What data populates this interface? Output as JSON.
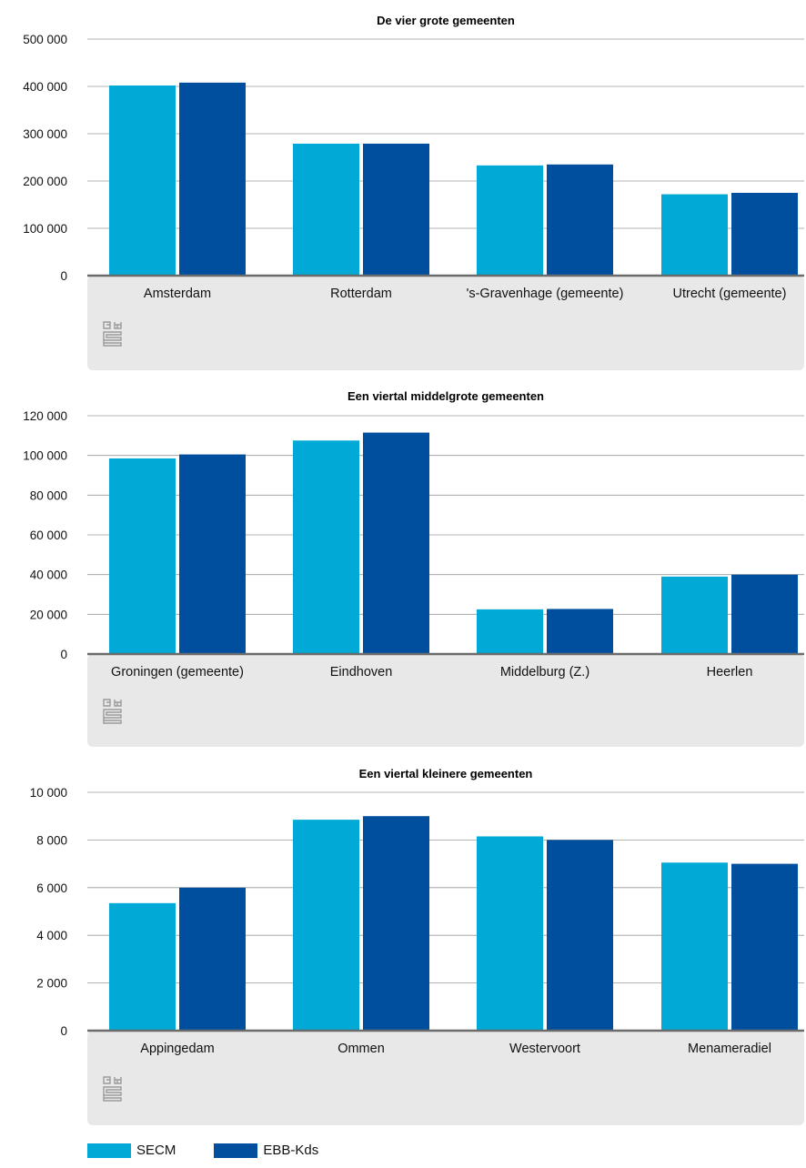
{
  "colors": {
    "SECM": "#00a9d6",
    "EBB-Kds": "#004f9f",
    "footer_bg": "#e8e8e8",
    "axis": "#6b6b6b",
    "grid": "#9a9a9a"
  },
  "legend": [
    {
      "name": "SECM",
      "color": "#00a9d6"
    },
    {
      "name": "EBB-Kds",
      "color": "#004f9f"
    }
  ],
  "chart_data": [
    {
      "type": "bar",
      "title": "De vier grote gemeenten",
      "categories": [
        "Amsterdam",
        "Rotterdam",
        "'s-Gravenhage (gemeente)",
        "Utrecht (gemeente)"
      ],
      "series": [
        {
          "name": "SECM",
          "values": [
            402000,
            279000,
            233000,
            172000
          ]
        },
        {
          "name": "EBB-Kds",
          "values": [
            408000,
            279000,
            235000,
            175000
          ]
        }
      ],
      "ylim": [
        0,
        500000
      ],
      "yticks": [
        0,
        100000,
        200000,
        300000,
        400000,
        500000
      ],
      "ytick_labels": [
        "0",
        "100 000",
        "200 000",
        "300 000",
        "400 000",
        "500 000"
      ],
      "grid": true,
      "logo": "cbs-logo-icon"
    },
    {
      "type": "bar",
      "title": "Een viertal middelgrote gemeenten",
      "categories": [
        "Groningen (gemeente)",
        "Eindhoven",
        "Middelburg (Z.)",
        "Heerlen"
      ],
      "series": [
        {
          "name": "SECM",
          "values": [
            98500,
            107500,
            22500,
            39000
          ]
        },
        {
          "name": "EBB-Kds",
          "values": [
            100500,
            111500,
            22700,
            40000
          ]
        }
      ],
      "ylim": [
        0,
        120000
      ],
      "yticks": [
        0,
        20000,
        40000,
        60000,
        80000,
        100000,
        120000
      ],
      "ytick_labels": [
        "0",
        "20 000",
        "40 000",
        "60 000",
        "80 000",
        "100 000",
        "120 000"
      ],
      "grid": true,
      "logo": "cbs-logo-icon"
    },
    {
      "type": "bar",
      "title": "Een viertal kleinere gemeenten",
      "categories": [
        "Appingedam",
        "Ommen",
        "Westervoort",
        "Menameradiel"
      ],
      "series": [
        {
          "name": "SECM",
          "values": [
            5350,
            8850,
            8150,
            7050
          ]
        },
        {
          "name": "EBB-Kds",
          "values": [
            6000,
            9000,
            8000,
            7000
          ]
        }
      ],
      "ylim": [
        0,
        10000
      ],
      "yticks": [
        0,
        2000,
        4000,
        6000,
        8000,
        10000
      ],
      "ytick_labels": [
        "0",
        "2 000",
        "4 000",
        "6 000",
        "8 000",
        "10 000"
      ],
      "grid": true,
      "logo": "cbs-logo-icon"
    }
  ]
}
